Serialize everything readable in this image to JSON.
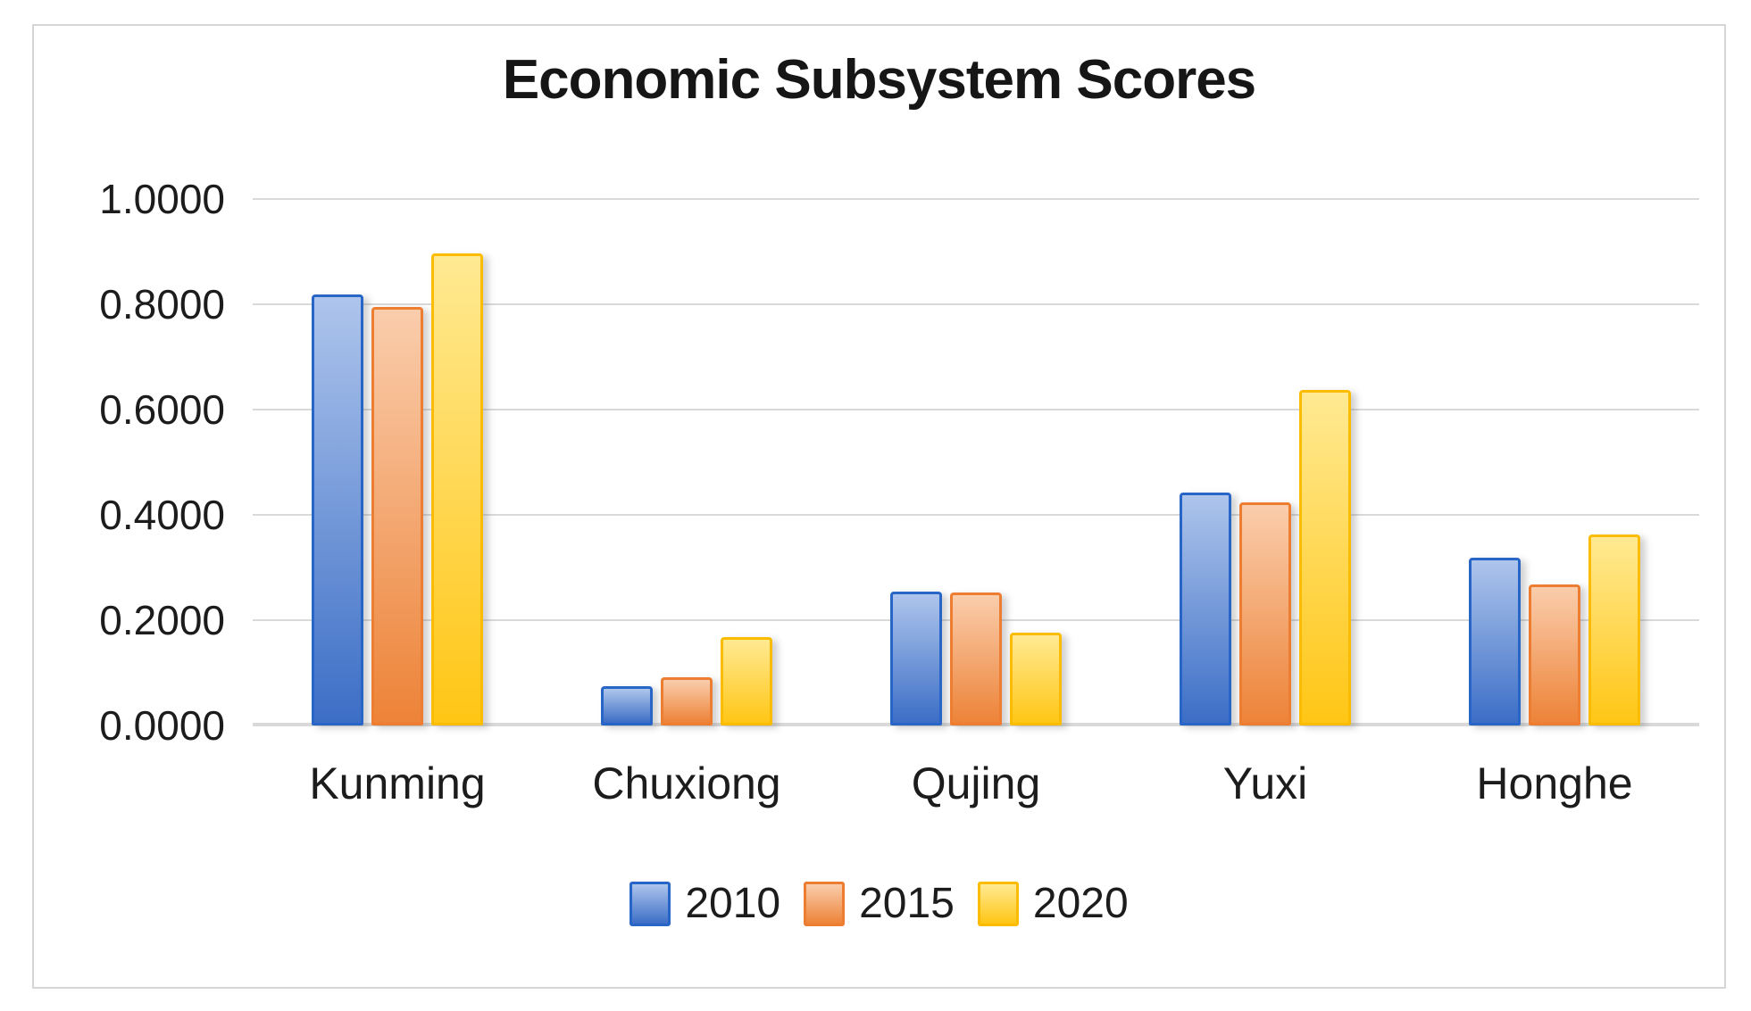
{
  "chart_data": {
    "type": "bar",
    "title": "Economic Subsystem Scores",
    "categories": [
      "Kunming",
      "Chuxiong",
      "Qujing",
      "Yuxi",
      "Honghe"
    ],
    "series": [
      {
        "name": "2010",
        "color": "#4472C4",
        "border": "#2766C6",
        "fill_top": "#AEC5EC",
        "fill_bottom": "#3C6EC6",
        "values": [
          0.818,
          0.075,
          0.255,
          0.442,
          0.319
        ]
      },
      {
        "name": "2015",
        "color": "#ED7D31",
        "border": "#ED7D31",
        "fill_top": "#FACDAC",
        "fill_bottom": "#ED8338",
        "values": [
          0.795,
          0.092,
          0.253,
          0.423,
          0.268
        ]
      },
      {
        "name": "2020",
        "color": "#FFC000",
        "border": "#FBBC00",
        "fill_top": "#FFE992",
        "fill_bottom": "#FFC615",
        "values": [
          0.897,
          0.168,
          0.177,
          0.638,
          0.362
        ]
      }
    ],
    "ylim": [
      0.0,
      1.0
    ],
    "ytick_step": 0.2,
    "ytick_labels": [
      "0.0000",
      "0.2000",
      "0.4000",
      "0.6000",
      "0.8000",
      "1.0000"
    ],
    "tick_format": "0.0000",
    "grid": "horizontal",
    "gridline_color": "#D9D9D9",
    "frame_border_color": "#D4D6D8",
    "legend_position": "bottom"
  }
}
